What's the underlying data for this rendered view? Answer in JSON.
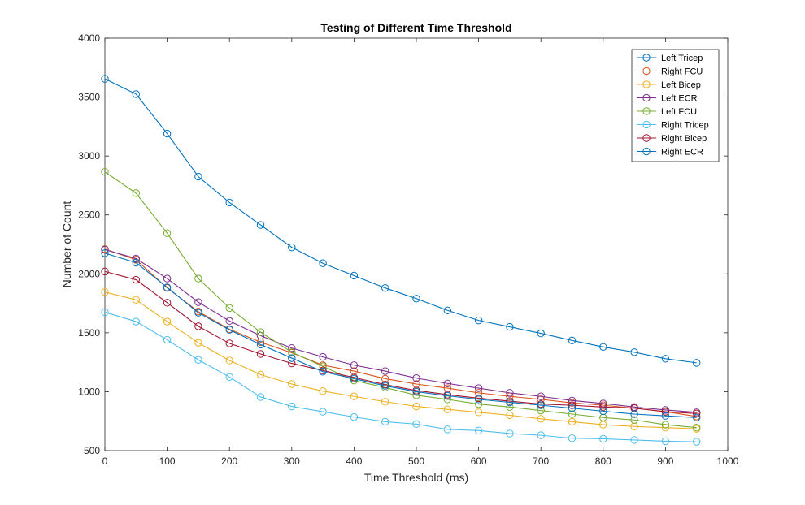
{
  "chart_data": {
    "type": "line",
    "title": "Testing of Different Time Threshold",
    "xlabel": "Time Threshold (ms)",
    "ylabel": "Number of Count",
    "xlim": [
      0,
      1000
    ],
    "ylim": [
      500,
      4000
    ],
    "xticks": [
      0,
      100,
      200,
      300,
      400,
      500,
      600,
      700,
      800,
      900,
      1000
    ],
    "yticks": [
      500,
      1000,
      1500,
      2000,
      2500,
      3000,
      3500,
      4000
    ],
    "grid": false,
    "legend_position": "top-right",
    "x": [
      0,
      50,
      100,
      150,
      200,
      250,
      300,
      350,
      400,
      450,
      500,
      550,
      600,
      650,
      700,
      750,
      800,
      850,
      900,
      950
    ],
    "series": [
      {
        "name": "Left Tricep",
        "color": "#0072BD",
        "values": [
          3655,
          3525,
          3190,
          2825,
          2605,
          2415,
          2225,
          2090,
          1985,
          1880,
          1790,
          1690,
          1605,
          1550,
          1495,
          1435,
          1380,
          1335,
          1280,
          1245
        ]
      },
      {
        "name": "Right FCU",
        "color": "#D95319",
        "values": [
          2210,
          2120,
          1880,
          1680,
          1530,
          1420,
          1330,
          1225,
          1175,
          1110,
          1065,
          1030,
          990,
          960,
          935,
          905,
          885,
          860,
          830,
          790
        ]
      },
      {
        "name": "Left Bicep",
        "color": "#EDB120",
        "values": [
          1845,
          1780,
          1595,
          1415,
          1265,
          1145,
          1065,
          1005,
          960,
          915,
          875,
          850,
          825,
          800,
          770,
          745,
          720,
          705,
          695,
          685
        ]
      },
      {
        "name": "Left ECR",
        "color": "#7E2F8E",
        "values": [
          2205,
          2130,
          1960,
          1760,
          1600,
          1475,
          1370,
          1295,
          1225,
          1175,
          1115,
          1070,
          1030,
          990,
          960,
          925,
          900,
          870,
          845,
          825
        ]
      },
      {
        "name": "Left FCU",
        "color": "#77AC30",
        "values": [
          2865,
          2685,
          2345,
          1960,
          1710,
          1505,
          1335,
          1215,
          1095,
          1035,
          970,
          935,
          895,
          870,
          840,
          810,
          780,
          760,
          720,
          695
        ]
      },
      {
        "name": "Right Tricep",
        "color": "#4DBEEE",
        "values": [
          1675,
          1595,
          1440,
          1270,
          1125,
          955,
          875,
          830,
          785,
          745,
          725,
          680,
          670,
          645,
          630,
          605,
          600,
          590,
          580,
          575
        ]
      },
      {
        "name": "Right Bicep",
        "color": "#A2142F",
        "values": [
          2020,
          1950,
          1755,
          1555,
          1410,
          1320,
          1240,
          1180,
          1120,
          1060,
          1010,
          975,
          945,
          920,
          895,
          885,
          870,
          860,
          830,
          815
        ]
      },
      {
        "name": "Right ECR",
        "color": "#0072BD",
        "values": [
          2175,
          2095,
          1885,
          1670,
          1525,
          1400,
          1285,
          1170,
          1110,
          1050,
          1000,
          965,
          935,
          910,
          885,
          860,
          835,
          810,
          795,
          780
        ]
      }
    ]
  }
}
